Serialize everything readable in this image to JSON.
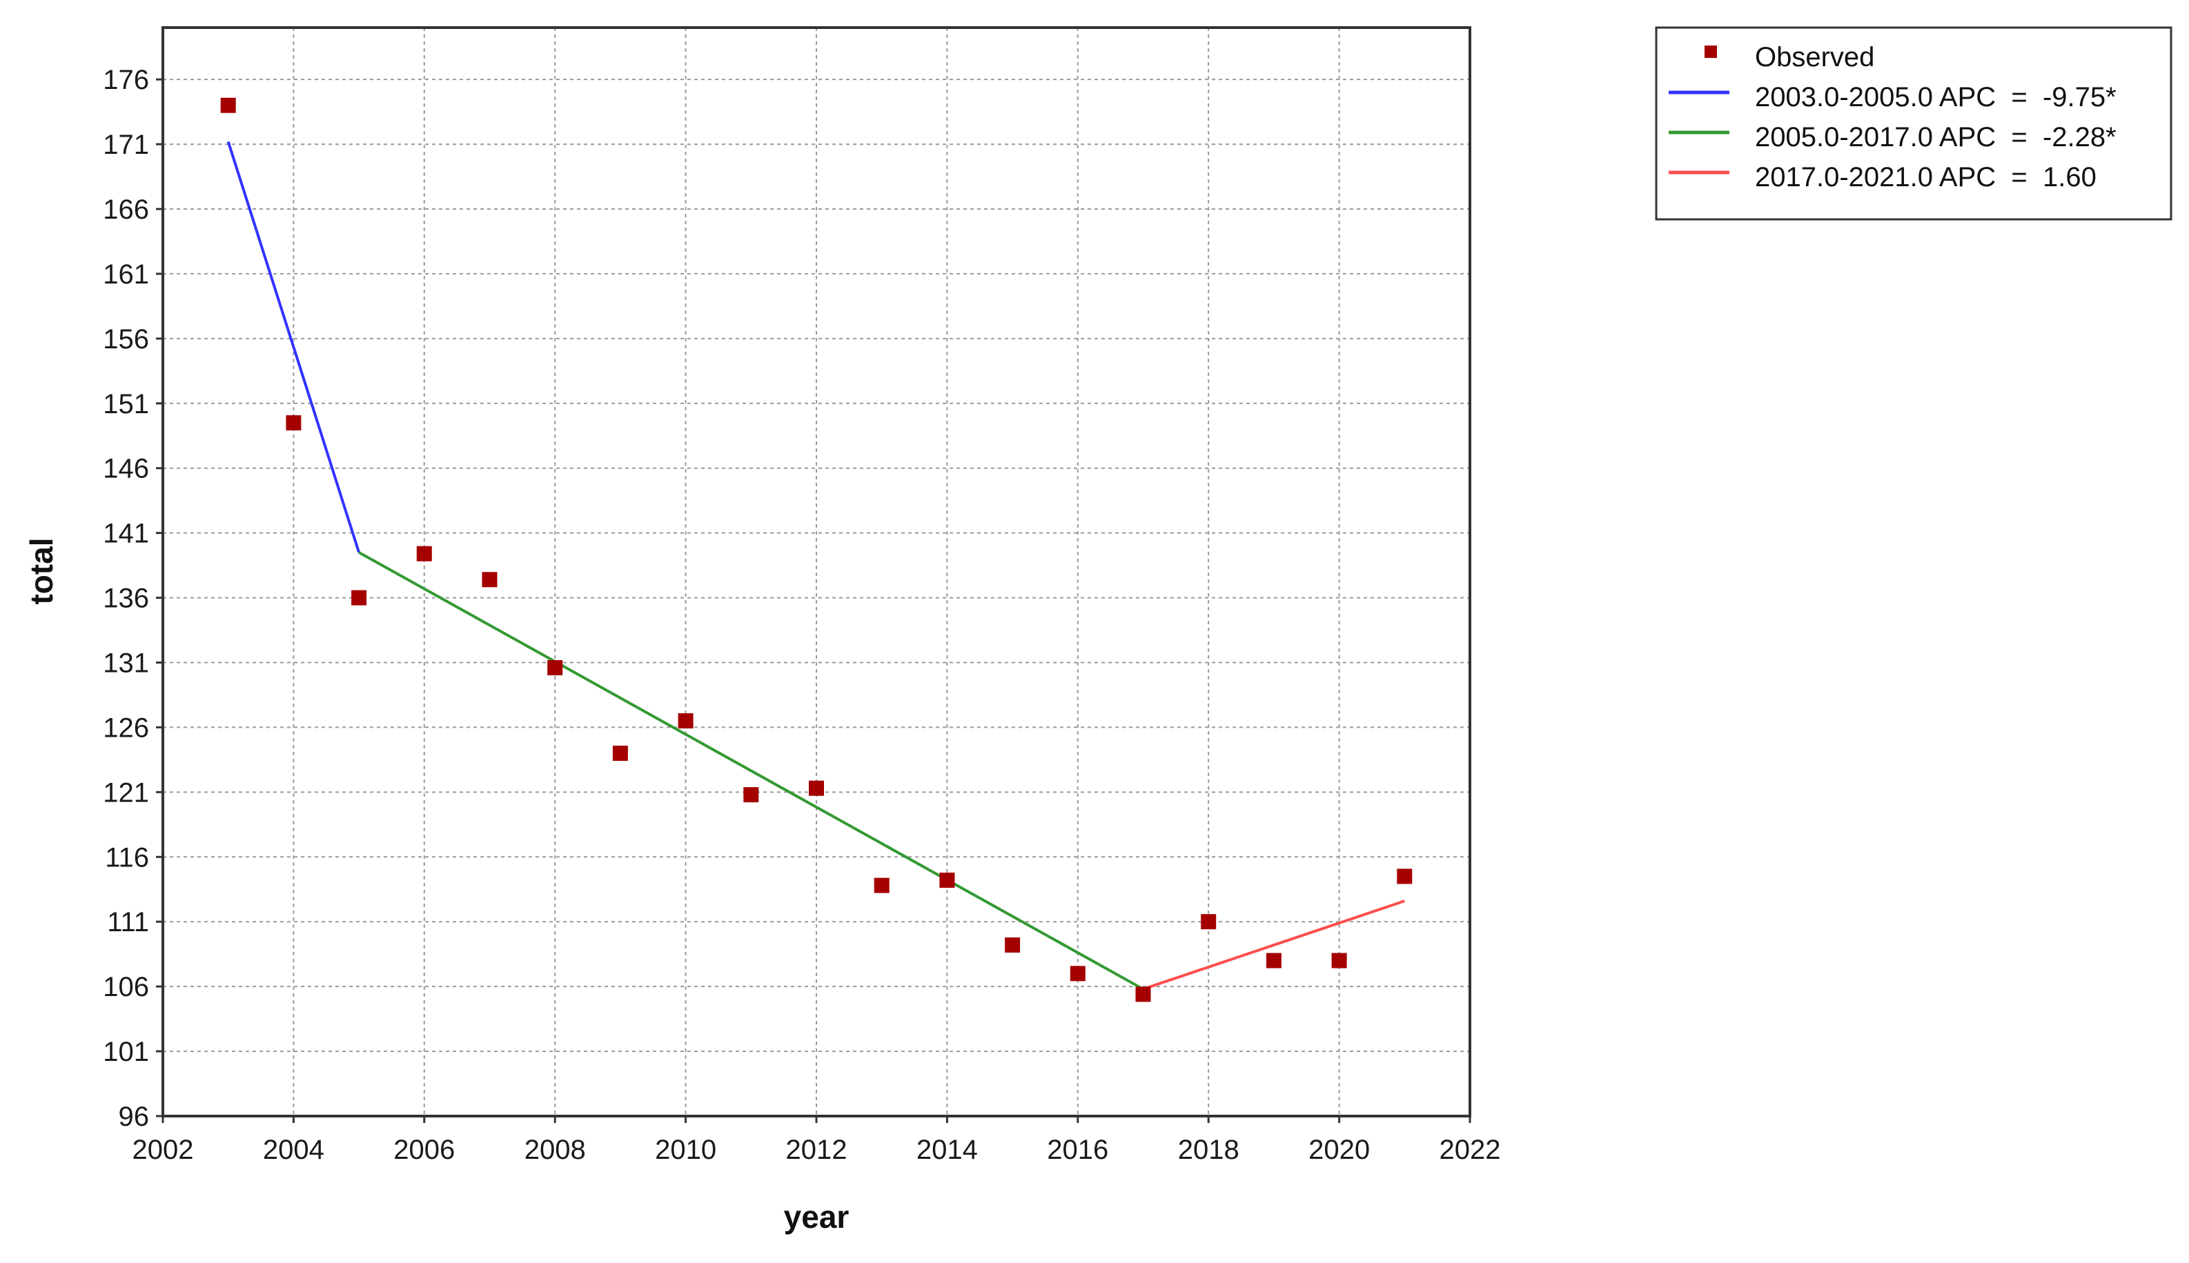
{
  "chart_data": {
    "type": "line",
    "xlabel": "year",
    "ylabel": "total",
    "xlim": [
      2002,
      2022
    ],
    "ylim": [
      96,
      180
    ],
    "xticks": [
      2002,
      2004,
      2006,
      2008,
      2010,
      2012,
      2014,
      2016,
      2018,
      2020,
      2022
    ],
    "yticks": [
      96,
      101,
      106,
      111,
      116,
      121,
      126,
      131,
      136,
      141,
      146,
      151,
      156,
      161,
      166,
      171,
      176
    ],
    "grid": true,
    "legend_position": "outside-top-right",
    "observed": {
      "name": "Observed",
      "color": "#a50000",
      "x": [
        2003,
        2004,
        2005,
        2006,
        2007,
        2008,
        2009,
        2010,
        2011,
        2012,
        2013,
        2014,
        2015,
        2016,
        2017,
        2018,
        2019,
        2020,
        2021
      ],
      "y": [
        174.0,
        149.5,
        136.0,
        139.4,
        137.4,
        130.6,
        124.0,
        126.5,
        120.8,
        121.3,
        113.8,
        114.2,
        109.2,
        107.0,
        105.4,
        111.0,
        108.0,
        108.0,
        114.5
      ]
    },
    "series": [
      {
        "name": "2003.0-2005.0 APC  =  -9.75*",
        "color": "#3333ff",
        "x": [
          2003,
          2005
        ],
        "y": [
          171.2,
          139.5
        ]
      },
      {
        "name": "2005.0-2017.0 APC  =  -2.28*",
        "color": "#339933",
        "x": [
          2005,
          2017
        ],
        "y": [
          139.5,
          105.8
        ]
      },
      {
        "name": "2017.0-2021.0 APC  =  1.60",
        "color": "#ff4d4d",
        "x": [
          2017,
          2021
        ],
        "y": [
          105.8,
          112.6
        ]
      }
    ]
  }
}
